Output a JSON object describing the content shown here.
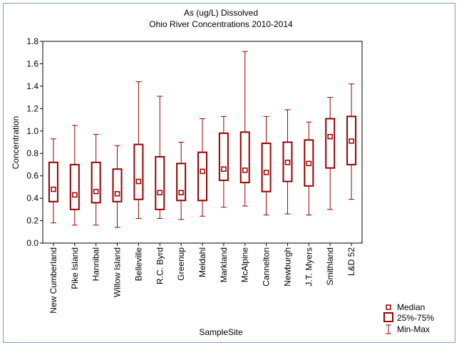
{
  "chart_data": {
    "type": "box",
    "title": "As (ug/L) Dissolved",
    "subtitle": "Ohio River Concentrations 2010-2014",
    "x_label": "SampleSite",
    "y_label": "Concentration",
    "color": "#990000",
    "categories": [
      "New Cumberland",
      "Pike Island",
      "Hannibal",
      "Willow Island",
      "Belleville",
      "R.C. Byrd",
      "Greenup",
      "Meldahl",
      "Markland",
      "McAlpine",
      "Cannelton",
      "Newburgh",
      "J.T. Myers",
      "Smithland",
      "L&D 52"
    ],
    "min": [
      0.18,
      0.16,
      0.16,
      0.14,
      0.22,
      0.22,
      0.21,
      0.24,
      0.32,
      0.33,
      0.25,
      0.26,
      0.25,
      0.3,
      0.39
    ],
    "q1": [
      0.37,
      0.3,
      0.36,
      0.37,
      0.39,
      0.3,
      0.38,
      0.38,
      0.56,
      0.54,
      0.46,
      0.55,
      0.51,
      0.67,
      0.7
    ],
    "median": [
      0.48,
      0.43,
      0.46,
      0.44,
      0.55,
      0.45,
      0.45,
      0.64,
      0.66,
      0.65,
      0.63,
      0.72,
      0.71,
      0.95,
      0.91
    ],
    "q3": [
      0.72,
      0.7,
      0.72,
      0.66,
      0.88,
      0.77,
      0.71,
      0.81,
      0.98,
      0.99,
      0.89,
      0.9,
      0.92,
      1.11,
      1.13
    ],
    "max": [
      0.93,
      1.05,
      0.97,
      0.87,
      1.44,
      1.31,
      0.9,
      1.11,
      1.13,
      1.71,
      1.13,
      1.19,
      1.08,
      1.3,
      1.42
    ],
    "legend": [
      "Median",
      "25%-75%",
      "Min-Max"
    ],
    "ylim": [
      0,
      1.8
    ],
    "yticks": [
      {
        "value": 0,
        "label": "0.0"
      },
      0.2,
      0.4,
      0.6,
      0.8,
      {
        "value": 1,
        "label": "1.0"
      },
      1.2,
      1.4,
      1.6,
      1.8
    ]
  }
}
